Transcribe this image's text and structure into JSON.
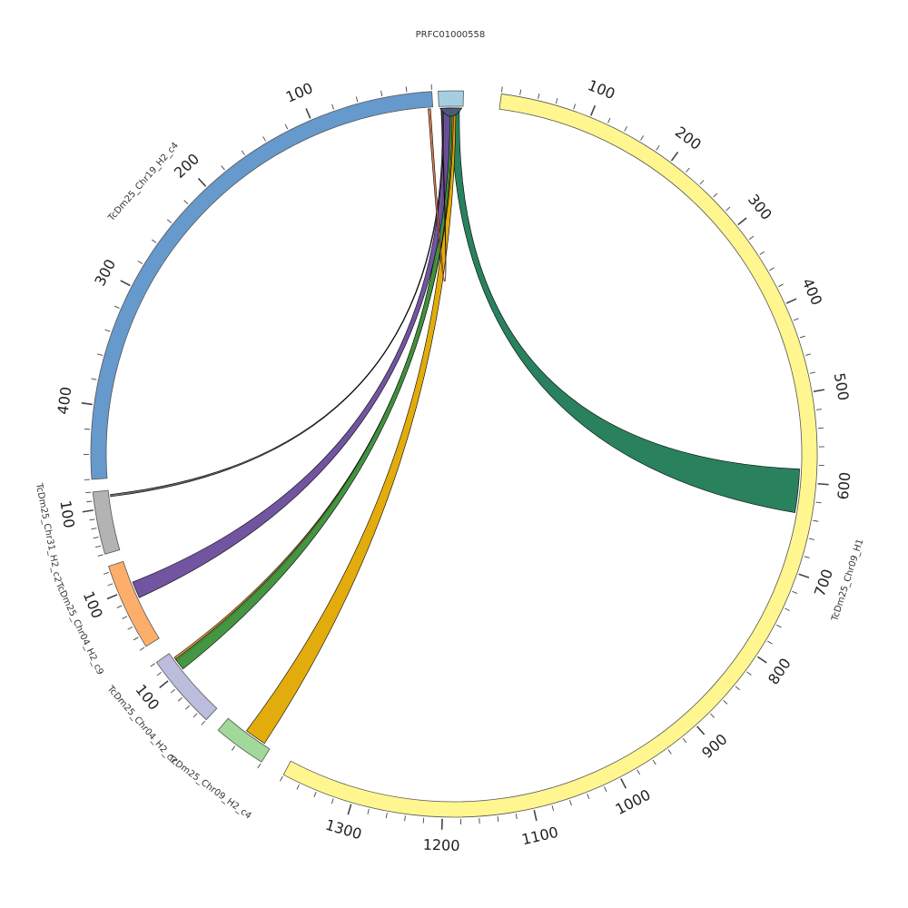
{
  "diagram": {
    "type": "circos",
    "segments": [
      {
        "id": "chr09h1",
        "label": "TcDm25_Chr09_H1",
        "color": "#fff68f",
        "start_deg": 7.5,
        "end_deg": 208,
        "length": 1380,
        "tick_every": 20,
        "label_every": 100,
        "rev": false,
        "show_name": true
      },
      {
        "id": "chr09c4",
        "label": "TcDm25_Chr09_H2_c4",
        "color": "#a1d99b",
        "start_deg": 212,
        "end_deg": 220.5,
        "length": 35,
        "tick_every": 20,
        "label_every": 100,
        "rev": false,
        "show_name": true
      },
      {
        "id": "chr04c7",
        "label": "TcDm25_Chr04_H2_c7",
        "color": "#bcbddc",
        "start_deg": 223,
        "end_deg": 235,
        "length": 140,
        "tick_every": 20,
        "label_every": 100,
        "rev": false,
        "show_name": true
      },
      {
        "id": "chr04c9",
        "label": "TcDm25_Chr04_H2_c9",
        "color": "#fdae6b",
        "start_deg": 238,
        "end_deg": 252,
        "length": 150,
        "tick_every": 20,
        "label_every": 100,
        "rev": false,
        "show_name": true
      },
      {
        "id": "chr31c2",
        "label": "TcDm25_Chr31_H2_c2",
        "color": "#b3b3b3",
        "start_deg": 254,
        "end_deg": 264,
        "length": 140,
        "tick_every": 20,
        "label_every": 100,
        "rev": false,
        "show_name": true
      },
      {
        "id": "chr19c4",
        "label": "TcDm25_Chr19_H2_c4",
        "color": "#6699cc",
        "start_deg": 266,
        "end_deg": 356.5,
        "length": 460,
        "tick_every": 20,
        "label_every": 100,
        "rev": true,
        "show_name": true
      },
      {
        "id": "prfc",
        "label": "PRFC01000558",
        "color": "#a6cee3",
        "start_deg": 357.5,
        "end_deg": 361.5,
        "length": 20,
        "tick_every": 0,
        "label_every": 0,
        "rev": false,
        "show_name": true
      }
    ],
    "ribbons": [
      {
        "from": "prfc",
        "from_start": 10,
        "from_end": 17,
        "to": "chr09h1",
        "to_start": 585,
        "to_end": 635,
        "color": "#1e7a55"
      },
      {
        "from": "prfc",
        "from_start": 7.5,
        "from_end": 14,
        "to": "chr09c4",
        "to_start": 5,
        "to_end": 20,
        "color": "#e0a800"
      },
      {
        "from": "prfc",
        "from_start": 6,
        "from_end": 12,
        "to": "chr04c7",
        "to_start": 120,
        "to_end": 128,
        "color": "#f28e3c"
      },
      {
        "from": "prfc",
        "from_start": 5,
        "from_end": 11,
        "to": "chr04c7",
        "to_start": 100,
        "to_end": 124,
        "color": "#3a8f3a"
      },
      {
        "from": "prfc",
        "from_start": 3,
        "from_end": 9,
        "to": "chr04c9",
        "to_start": 80,
        "to_end": 110,
        "color": "#6a4c9c"
      },
      {
        "from": "prfc",
        "from_start": 2.5,
        "from_end": 3.5,
        "to": "chr31c2",
        "to_start": 125,
        "to_end": 130,
        "color": "#6b6b6b"
      },
      {
        "from": "prfc",
        "from_start": 1.8,
        "from_end": 2.4,
        "to": "chr19c4",
        "to_start": 2,
        "to_end": 4,
        "color": "#d4764a"
      },
      {
        "from": "prfc",
        "from_start": 1,
        "from_end": 19,
        "to": "prfc",
        "to_start": 1,
        "to_end": 19,
        "color": "#4a5a7a",
        "self": true
      }
    ]
  }
}
